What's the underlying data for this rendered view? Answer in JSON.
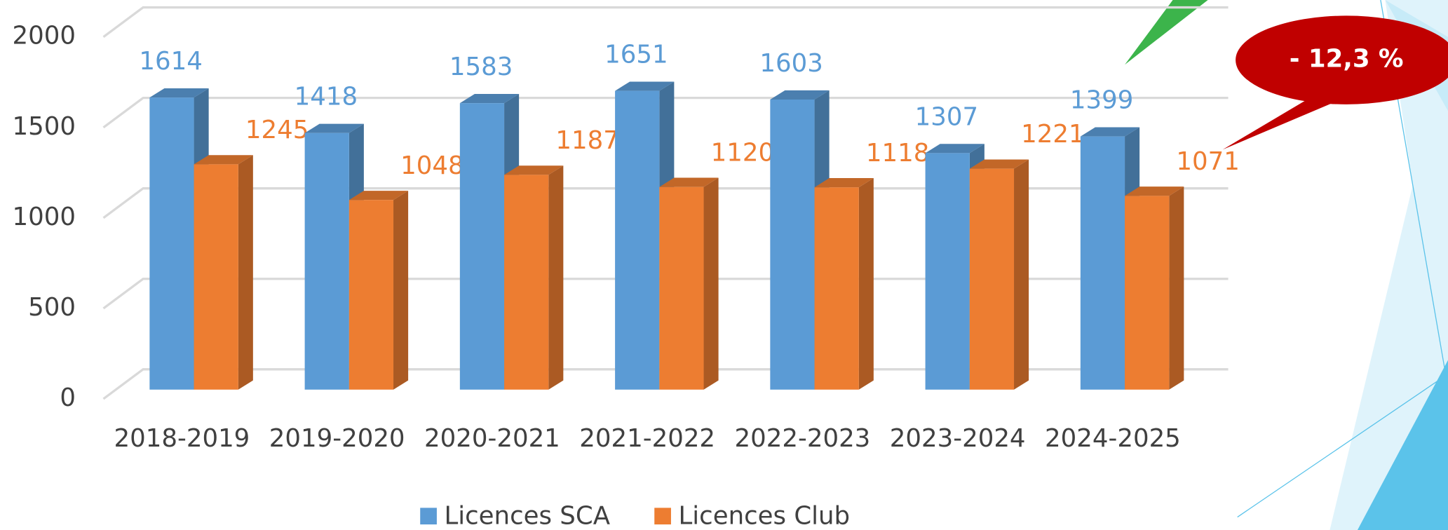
{
  "chart_data": {
    "type": "bar3d",
    "categories": [
      "2018-2019",
      "2019-2020",
      "2020-2021",
      "2021-2022",
      "2022-2023",
      "2023-2024",
      "2024-2025"
    ],
    "series": [
      {
        "name": "Licences SCA",
        "color": "#5b9bd5",
        "values": [
          1614,
          1418,
          1583,
          1651,
          1603,
          1307,
          1399
        ]
      },
      {
        "name": "Licences Club",
        "color": "#ed7d31",
        "values": [
          1245,
          1048,
          1187,
          1120,
          1118,
          1221,
          1071
        ]
      }
    ],
    "ylim": [
      0,
      2000
    ],
    "yticks": [
      0,
      500,
      1000,
      1500,
      2000
    ],
    "grid": true,
    "annotation": "- 12,3 %"
  }
}
